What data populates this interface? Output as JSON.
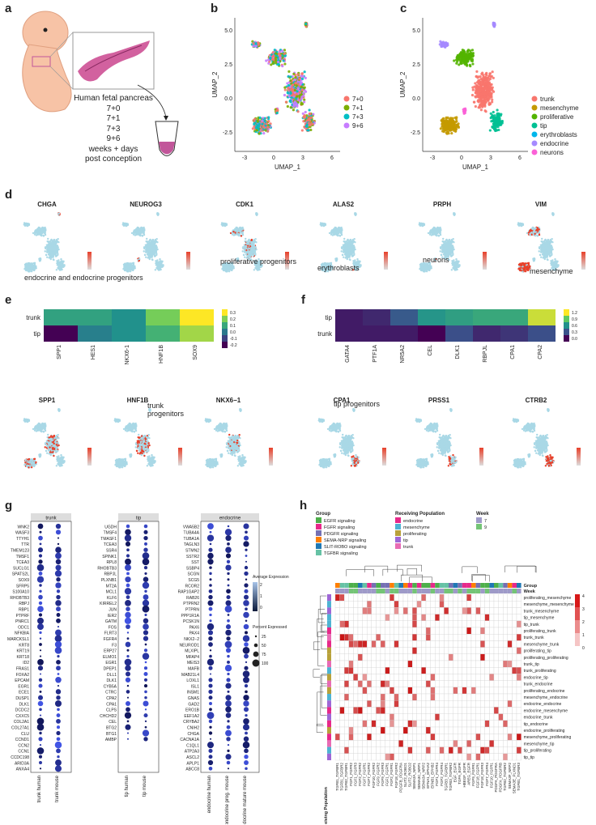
{
  "panels": {
    "a": "a",
    "b": "b",
    "c": "c",
    "d": "d",
    "e": "e",
    "f": "f",
    "g": "g",
    "h": "h"
  },
  "panel_a": {
    "lines": [
      "Human fetal pancreas",
      "7+0",
      "7+1",
      "7+3",
      "9+6",
      "weeks + days",
      "post conception"
    ],
    "colors": {
      "embryo": "#f7c3a6",
      "pancreas": "#d2619f",
      "tube": "#c2569a"
    }
  },
  "umap_axes": {
    "x_label": "UMAP_1",
    "y_label": "UMAP_2",
    "x_ticks": [
      "-3",
      "0",
      "3",
      "6"
    ],
    "y_ticks": [
      "5.0",
      "2.5",
      "0.0",
      "-2.5"
    ]
  },
  "panel_b": {
    "legend": [
      {
        "label": "7+0",
        "color": "#f8766d"
      },
      {
        "label": "7+1",
        "color": "#7cae00"
      },
      {
        "label": "7+3",
        "color": "#00bfc4"
      },
      {
        "label": "9+6",
        "color": "#c77cff"
      }
    ]
  },
  "panel_c": {
    "legend": [
      {
        "label": "trunk",
        "color": "#f8766d"
      },
      {
        "label": "mesenchyme",
        "color": "#c49a00"
      },
      {
        "label": "proliferative",
        "color": "#53b400"
      },
      {
        "label": "tip",
        "color": "#00c094"
      },
      {
        "label": "erythroblasts",
        "color": "#00b6eb"
      },
      {
        "label": "endocrine",
        "color": "#a58aff"
      },
      {
        "label": "neurons",
        "color": "#fb61d7"
      }
    ]
  },
  "panel_d": {
    "genes": [
      "CHGA",
      "NEUROG3",
      "CDK1",
      "ALAS2",
      "PRPH",
      "VIM"
    ],
    "annotations": {
      "endocrine": "endocrine and endocrine progenitors",
      "prolif": "proliferative progenitors",
      "eryth": "erythroblasts",
      "neurons": "neurons",
      "mesen": "mesenchyme"
    }
  },
  "panel_e": {
    "rows": [
      "trunk",
      "tip"
    ],
    "cols": [
      "SPP1",
      "HES1",
      "NKX6-1",
      "HNF1B",
      "SOX9"
    ],
    "values": [
      [
        0.1,
        0.1,
        0.05,
        0.25,
        0.4
      ],
      [
        -0.3,
        0.0,
        0.05,
        0.15,
        0.3
      ]
    ],
    "scale": [
      "0.3",
      "0.2",
      "0.1",
      "0.0",
      "-0.1",
      "-0.2"
    ],
    "genes": [
      "SPP1",
      "HNF1B",
      "NKX6−1"
    ],
    "annotation": "trunk progenitors"
  },
  "panel_f": {
    "rows": [
      "tip",
      "trunk"
    ],
    "cols": [
      "GATA4",
      "PTF1A",
      "NR5A2",
      "CEL",
      "DLK1",
      "RBPJL",
      "CPA1",
      "CPA2"
    ],
    "values": [
      [
        0.05,
        0.1,
        0.3,
        0.6,
        0.65,
        0.7,
        0.7,
        1.1
      ],
      [
        0.05,
        0.05,
        0.05,
        -0.05,
        0.25,
        0.1,
        0.15,
        0.25
      ]
    ],
    "scale": [
      "1.2",
      "0.9",
      "0.6",
      "0.3",
      "0.0"
    ],
    "genes": [
      "CPA1",
      "PRSS1",
      "CTRB2"
    ],
    "annotation": "tip progenitors"
  },
  "panel_g": {
    "groups": [
      {
        "title": "trunk",
        "cols": [
          "trunk human",
          "trunk mouse"
        ],
        "genes": [
          "WNK2",
          "WASF3",
          "TTYH1",
          "TTR",
          "TMEM123",
          "TMSF1",
          "TCEA3",
          "SUCLG1",
          "SPATS2L",
          "SOX9",
          "SFRP5",
          "S100A10",
          "RHOBTB3",
          "RBPJ",
          "RBP1",
          "PTPRF",
          "PNRC1",
          "ODC1",
          "NFKBIA",
          "MARCKSL1",
          "KRT8",
          "KRT19",
          "KRT18",
          "ID2",
          "FRAS1",
          "FOXA2",
          "EPCAM",
          "EGR1",
          "ECE1",
          "DUSP1",
          "DLK1",
          "DCDC2",
          "CXXC5",
          "COL2A1",
          "COL27A1",
          "CLU",
          "CCND1",
          "CCN2",
          "CCN1",
          "CCDC198",
          "ARID3A",
          "ANXA4"
        ]
      },
      {
        "title": "tip",
        "cols": [
          "tip human",
          "tip mouse"
        ],
        "genes": [
          "UGDH",
          "TMSF4",
          "TMASF1",
          "TCEA3",
          "SSR4",
          "SPINK1",
          "RPL8",
          "RHOBTB3",
          "RBPJL",
          "PLXNB1",
          "MT2A",
          "MCL1",
          "KLF6",
          "KIRREL2",
          "JUN",
          "IER2",
          "GATM",
          "FOS",
          "FLRT3",
          "FGFR4",
          "F3",
          "ERP27",
          "ELMO1",
          "EGR1",
          "DPEP1",
          "DLL1",
          "DLK1",
          "CYB5A",
          "CTRC",
          "CPA2",
          "CPA1",
          "CLPS",
          "CHCHD2",
          "CEL",
          "BTG2",
          "BTG1",
          "AMBP"
        ]
      },
      {
        "title": "endocrine",
        "cols": [
          "endocrine human",
          "endocrine prog. mouse",
          "endocrine mature mouse"
        ],
        "genes": [
          "VWA5B2",
          "TUBA4A",
          "TUBA1A",
          "TAGLN3",
          "STMN2",
          "SSTR2",
          "SST",
          "SSBP4",
          "SCGN",
          "SCG5",
          "RCOR2",
          "RAP1GAP2",
          "RAB26",
          "PTPRN2",
          "PTPRN",
          "PPP1R1A",
          "PCSK1N",
          "PAX6",
          "PAX4",
          "NKX2−2",
          "NEUROD1",
          "MLXIPL",
          "MFAP4",
          "MEIS3",
          "MAFB",
          "MAB21L4",
          "LOXL1",
          "ISL1",
          "INSM1",
          "GNAS",
          "GAD2",
          "ERO1B",
          "EEF1A2",
          "CRYBA2",
          "CNIH2",
          "CHGA",
          "CACNA1A",
          "C1QL1",
          "ATP2A3",
          "ASCL2",
          "APLP1",
          "ABCC8"
        ]
      }
    ],
    "legend_avg_title": "Average Expression",
    "legend_avg_ticks": [
      "2",
      "1",
      "0"
    ],
    "legend_pct_title": "Percent Expressed",
    "legend_pct_ticks": [
      "25",
      "50",
      "75",
      "100"
    ]
  },
  "panel_h": {
    "group_title": "Group",
    "groups": [
      {
        "label": "EGFR signaling",
        "color": "#4daf4a"
      },
      {
        "label": "FGFR signaling",
        "color": "#e7298a"
      },
      {
        "label": "PDGFR signaling",
        "color": "#7570b3"
      },
      {
        "label": "SEMA-NRP signaling",
        "color": "#ff7f00"
      },
      {
        "label": "SLIT-ROBO signaling",
        "color": "#1f78b4"
      },
      {
        "label": "TGFBR signaling",
        "color": "#66c2a5"
      }
    ],
    "recv_title": "Receiving Population",
    "recv": [
      {
        "label": "endocrine",
        "color": "#e7298a"
      },
      {
        "label": "mesenchyme",
        "color": "#4eb3d3"
      },
      {
        "label": "proliferating",
        "color": "#b8a13a"
      },
      {
        "label": "tip",
        "color": "#9e67d6"
      },
      {
        "label": "trunk",
        "color": "#e86bb4"
      }
    ],
    "week_title": "Week",
    "weeks": [
      {
        "label": "7",
        "color": "#9e9ac8"
      },
      {
        "label": "9",
        "color": "#74c476"
      }
    ],
    "row_labels": [
      "proliferating_mesenchyme",
      "mesenchyme_mesenchyme",
      "trunk_mesenchyme",
      "tip_mesenchyme",
      "tip_trunk",
      "proliferating_trunk",
      "trunk_trunk",
      "mesenchyme_trunk",
      "proliferating_tip",
      "proliferating_proliferating",
      "trunk_tip",
      "trunk_proliferating",
      "endocrine_tip",
      "trunk_endocrine",
      "proliferating_endocrine",
      "mesenchyme_endocrine",
      "endocrine_endocrine",
      "endocrine_mesenchyme",
      "endocrine_trunk",
      "tip_endocrine",
      "endocrine_proliferating",
      "mesenchyme_proliferating",
      "mesenchyme_tip",
      "tip_proliferating",
      "tip_tip"
    ],
    "col_labels": [
      "TGFB1_TGFBR1",
      "TGFB1_TGFBR2",
      "TGFB2_TGFBR1",
      "FGF1_FGFR2",
      "FGF1_FGFR3",
      "FGF2_FGFR2",
      "FGF7_FGFR1",
      "FGF7_FGFR2",
      "FGF10_FGFR2",
      "FGF9_FGFR2",
      "FGF9_FGFR3",
      "FGF1_FGFR1",
      "FGF2_FGFR1",
      "FGF18_FGFR2",
      "PDGFB_PDGFRA",
      "SLIT2_ROBO1",
      "SLIT2_ROBO2",
      "SEMA3A_NRP1",
      "SEMA3C_NRP1",
      "SEMA3A_NRP2",
      "EFNA1_EPHA2",
      "EFNB1_EPHB2",
      "FGF1_FGFR4",
      "FGF2_FGFR4",
      "TGFB3_TGFBR1",
      "TGFB3_TGFBR2",
      "EGF_EGFR",
      "TGFA_EGFR",
      "HBEGF_EGFR",
      "AREG_EGFR",
      "FGF9_FGFR1",
      "FGF18_FGFR1",
      "FGF18_FGFR3",
      "FGF7_FGFR4",
      "FGF10_FGFR1",
      "PDGFA_PDGFRA",
      "PDGFA_PDGFRB",
      "TGFB2_TGFBR2",
      "SEMA3F_NRP2",
      "SEMA3E_PLXND1",
      "TGFB1_TGFBR3"
    ],
    "side_label": "Receiving Population",
    "row_group_title": "Group",
    "row_week_title": "Week",
    "scale": [
      "4",
      "3",
      "2",
      "1",
      "0"
    ]
  }
}
